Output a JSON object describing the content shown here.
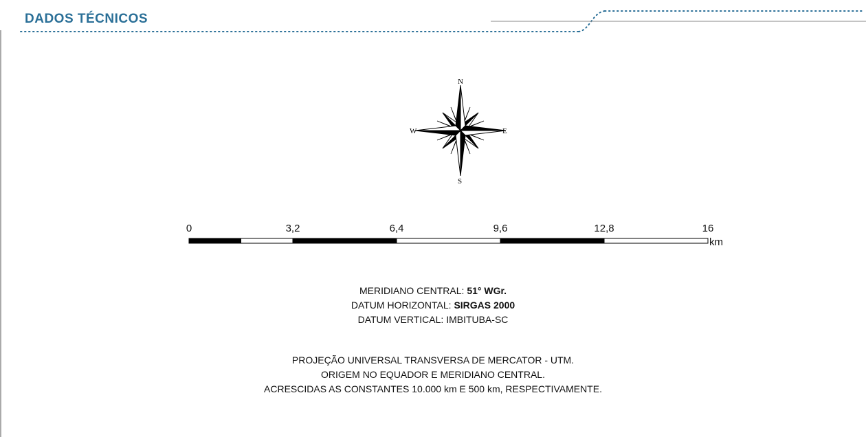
{
  "header": {
    "title": "DADOS TÉCNICOS"
  },
  "colors": {
    "accent": "#2a6f97",
    "bar_dark": "#000000",
    "bar_light": "#ffffff"
  },
  "compass": {
    "n": "N",
    "e": "E",
    "s": "S",
    "w": "W"
  },
  "scale": {
    "ticks": [
      "0",
      "3,2",
      "6,4",
      "9,6",
      "12,8",
      "16"
    ],
    "unit": "km"
  },
  "info": {
    "meridiano_label": "MERIDIANO CENTRAL: ",
    "meridiano_value": "51° WGr.",
    "datum_h_label": "DATUM HORIZONTAL: ",
    "datum_h_value": "SIRGAS 2000",
    "datum_v": "DATUM VERTICAL: IMBITUBA-SC",
    "proj_line1": "PROJEÇÃO UNIVERSAL TRANSVERSA DE MERCATOR - UTM.",
    "proj_line2": "ORIGEM NO EQUADOR E MERIDIANO CENTRAL.",
    "proj_line3": "ACRESCIDAS AS CONSTANTES 10.000 km E 500 km, RESPECTIVAMENTE."
  }
}
